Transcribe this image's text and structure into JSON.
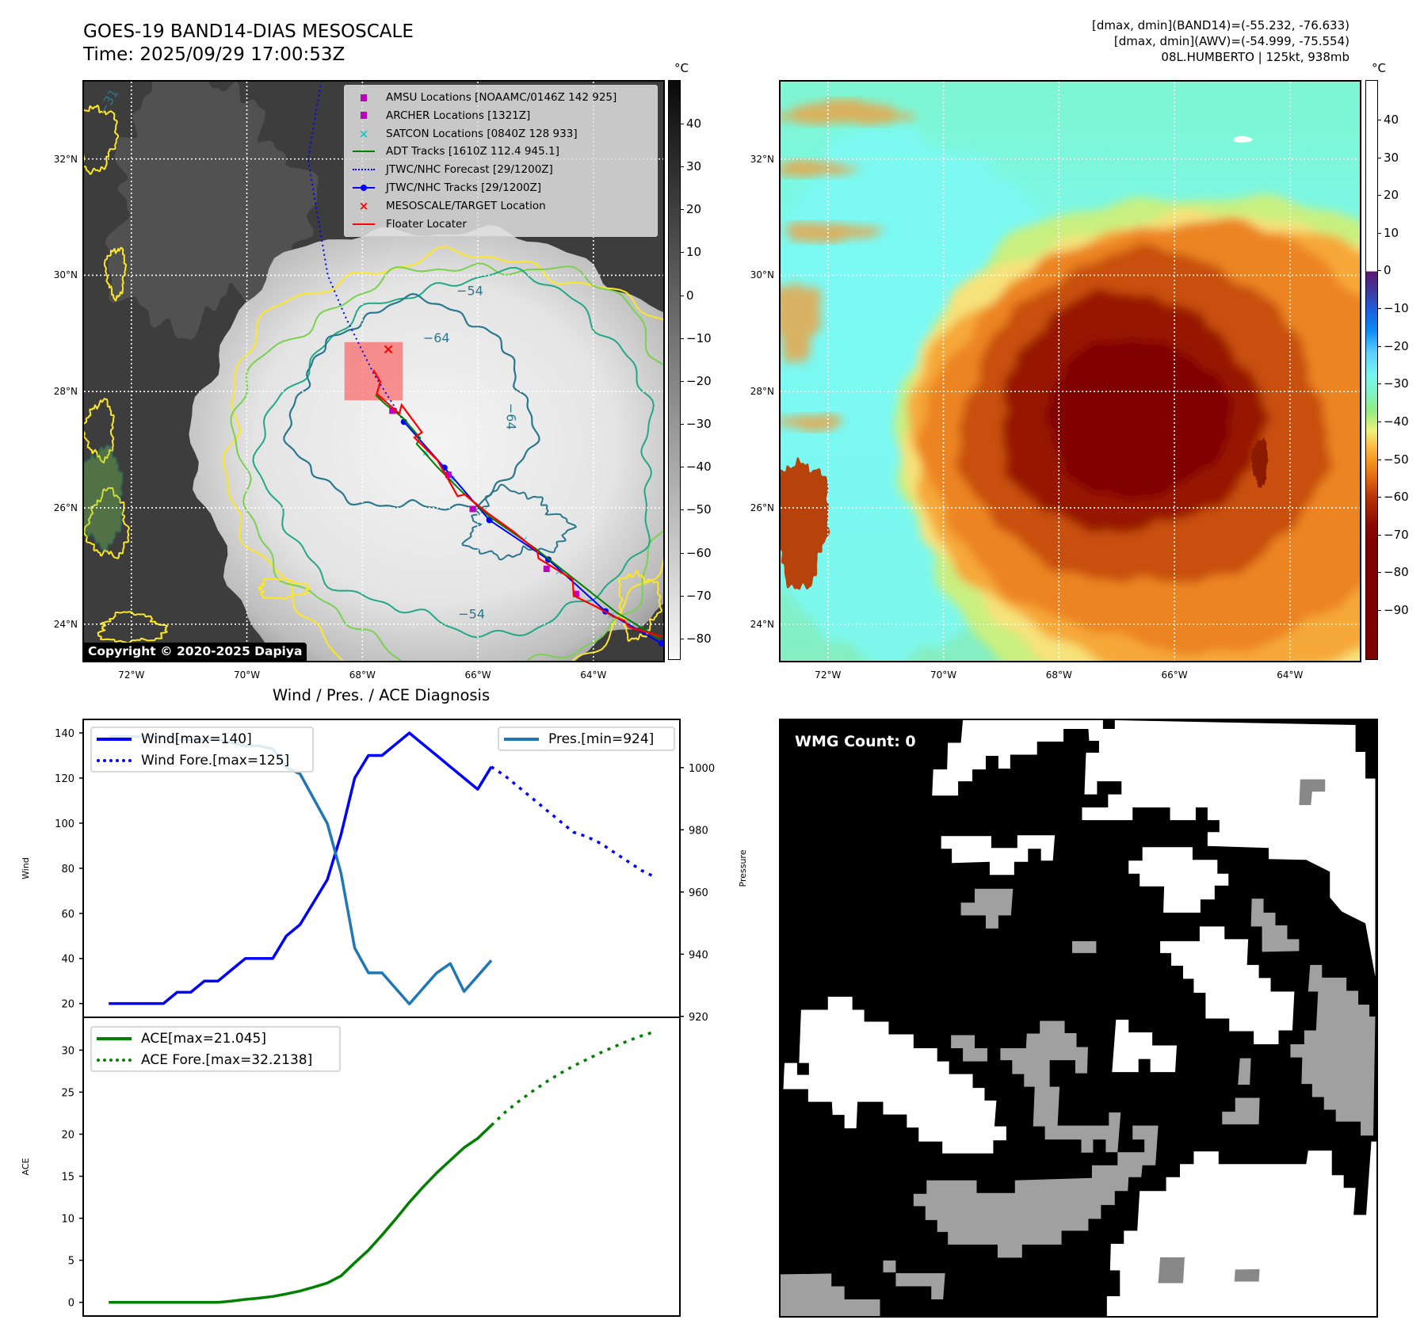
{
  "header": {
    "title": "GOES-19 BAND14-DIAS MESOSCALE",
    "time": "Time: 2025/09/29 17:00:53Z"
  },
  "info": {
    "band14": "[dmax, dmin](BAND14)=(-55.232, -76.633)",
    "awv": "[dmax, dmin](AWV)=(-54.999, -75.554)",
    "storm": "08L.HUMBERTO | 125kt, 938mb"
  },
  "map": {
    "lon_range": [
      -72.82,
      -62.79
    ],
    "lat_range": [
      23.37,
      33.33
    ],
    "lat_ticks": [
      {
        "value": 32,
        "label": "32°N"
      },
      {
        "value": 30,
        "label": "30°N"
      },
      {
        "value": 28,
        "label": "28°N"
      },
      {
        "value": 26,
        "label": "26°N"
      },
      {
        "value": 24,
        "label": "24°N"
      }
    ],
    "lon_ticks": [
      {
        "value": -72,
        "label": "72°W"
      },
      {
        "value": -70,
        "label": "70°W"
      },
      {
        "value": -68,
        "label": "68°W"
      },
      {
        "value": -66,
        "label": "66°W"
      },
      {
        "value": -64,
        "label": "64°W"
      }
    ],
    "copyright": "Copyright © 2020-2025 Dapiya",
    "contour_labels": [
      {
        "text": "−64",
        "lon": -66.95,
        "lat": 28.85,
        "rotate": 0
      },
      {
        "text": "−64",
        "lon": -65.5,
        "lat": 27.8,
        "rotate": 90
      },
      {
        "text": "−54",
        "lon": -66.37,
        "lat": 29.66,
        "rotate": 0
      },
      {
        "text": "−54",
        "lon": -66.34,
        "lat": 24.1,
        "rotate": 0
      },
      {
        "text": "−31",
        "lon": -72.45,
        "lat": 32.75,
        "rotate": -60
      }
    ],
    "legend": [
      {
        "label": "AMSU Locations [NOAAMC/0146Z 142 925]",
        "symbol": "square",
        "color": "#c000c0"
      },
      {
        "label": "ARCHER Locations [1321Z]",
        "symbol": "square",
        "color": "#c000c0"
      },
      {
        "label": "SATCON Locations [0840Z 128 933]",
        "symbol": "x",
        "color": "#20c0c0"
      },
      {
        "label": "ADT Tracks [1610Z 112.4 945.1]",
        "symbol": "line",
        "color": "#008000"
      },
      {
        "label": "JTWC/NHC Forecast [29/1200Z]",
        "symbol": "dotted",
        "color": "#0000ff"
      },
      {
        "label": "JTWC/NHC Tracks [29/1200Z]",
        "symbol": "line-dot",
        "color": "#0000ff"
      },
      {
        "label": "MESOSCALE/TARGET Location",
        "symbol": "x",
        "color": "#ff0000"
      },
      {
        "label": "Floater Locater",
        "symbol": "line",
        "color": "#ff0000"
      }
    ],
    "tracks": {
      "jtwc": [
        [
          -67.28,
          27.48
        ],
        [
          -66.58,
          26.69
        ],
        [
          -65.8,
          25.79
        ],
        [
          -64.78,
          25.11
        ],
        [
          -63.79,
          24.22
        ],
        [
          -62.82,
          23.67
        ]
      ],
      "forecast": [
        [
          -67.28,
          27.48
        ],
        [
          -67.8,
          28.3
        ],
        [
          -68.3,
          29.3
        ],
        [
          -68.6,
          30.0
        ],
        [
          -68.94,
          32.0
        ],
        [
          -68.7,
          33.4
        ]
      ],
      "adt": [
        [
          -67.77,
          27.94
        ],
        [
          -67.6,
          27.78
        ],
        [
          -67.3,
          27.55
        ],
        [
          -67.0,
          27.2
        ],
        [
          -67.06,
          27.1
        ],
        [
          -66.7,
          26.7
        ],
        [
          -66.3,
          26.3
        ],
        [
          -65.8,
          25.85
        ],
        [
          -65.0,
          25.3
        ],
        [
          -64.3,
          24.75
        ],
        [
          -63.6,
          24.2
        ],
        [
          -62.85,
          23.75
        ]
      ],
      "floater": [
        [
          -67.81,
          28.37
        ],
        [
          -67.69,
          28.17
        ],
        [
          -67.75,
          27.96
        ],
        [
          -67.36,
          27.62
        ],
        [
          -67.32,
          27.77
        ],
        [
          -66.97,
          27.3
        ],
        [
          -67.1,
          27.21
        ],
        [
          -66.7,
          26.82
        ],
        [
          -66.35,
          26.2
        ],
        [
          -66.23,
          26.23
        ],
        [
          -65.83,
          25.91
        ],
        [
          -65.38,
          25.59
        ],
        [
          -64.97,
          25.25
        ],
        [
          -64.95,
          25.13
        ],
        [
          -64.36,
          24.77
        ],
        [
          -64.34,
          24.49
        ],
        [
          -63.93,
          24.29
        ],
        [
          -63.65,
          24.13
        ],
        [
          -63.46,
          24.06
        ],
        [
          -63.39,
          23.95
        ],
        [
          -62.82,
          23.79
        ]
      ],
      "amsu_archer": [
        [
          -67.48,
          27.67
        ],
        [
          -66.51,
          26.57
        ],
        [
          -66.09,
          25.98
        ],
        [
          -64.81,
          24.95
        ],
        [
          -64.3,
          24.52
        ]
      ],
      "satcon": [
        [
          -66.9,
          26.95
        ],
        [
          -66.45,
          26.5
        ],
        [
          -65.9,
          25.95
        ],
        [
          -65.2,
          25.45
        ],
        [
          -64.6,
          24.9
        ],
        [
          -63.7,
          24.15
        ]
      ],
      "target": [
        -67.55,
        28.73
      ],
      "mesoscale_box": {
        "lon": [
          -68.31,
          -67.3
        ],
        "lat": [
          27.85,
          28.85
        ]
      }
    }
  },
  "colorbar_left": {
    "unit": "°C",
    "range": [
      -84.6,
      50.1
    ],
    "ticks": [
      40,
      30,
      20,
      10,
      0,
      -10,
      -20,
      -30,
      -40,
      -50,
      -60,
      -70,
      -80
    ]
  },
  "colorbar_right": {
    "unit": "°C",
    "range": [
      -102.8,
      50.5
    ],
    "ticks": [
      40,
      30,
      20,
      10,
      0,
      -10,
      -20,
      -30,
      -40,
      -50,
      -60,
      -70,
      -80,
      -90
    ]
  },
  "chart_title": "Wind / Pres. / ACE Diagnosis",
  "chart_data": [
    {
      "type": "line",
      "title": "Wind / Pres. / ACE Diagnosis",
      "ylabel": "Wind",
      "y2label": "Pressure",
      "xlim": [
        -1.87,
        41.8
      ],
      "ylim": [
        13.9,
        146
      ],
      "y2lim": [
        919.7,
        1015.5
      ],
      "yticks": [
        20,
        40,
        60,
        80,
        100,
        120,
        140
      ],
      "y2ticks": [
        920,
        940,
        960,
        980,
        1000
      ],
      "series": [
        {
          "name": "Wind[max=140]",
          "axis": "left",
          "style": "solid",
          "color": "#0000ff",
          "x": [
            0,
            1,
            2,
            3,
            4,
            5,
            6,
            7,
            8,
            9,
            10,
            11,
            12,
            13,
            14,
            15,
            16,
            17,
            18,
            19,
            20,
            21,
            22,
            23,
            24,
            25,
            26,
            27,
            28
          ],
          "values": [
            20,
            20,
            20,
            20,
            20,
            25,
            25,
            30,
            30,
            35,
            40,
            40,
            40,
            50,
            55,
            65,
            75,
            95,
            120,
            130,
            130,
            135,
            140,
            135,
            130,
            125,
            120,
            115,
            125
          ]
        },
        {
          "name": "Wind Fore.[max=125]",
          "axis": "left",
          "style": "dotted",
          "color": "#0000ff",
          "x": [
            28,
            29,
            30,
            31,
            32,
            33,
            34,
            35,
            36,
            37,
            38,
            39,
            40
          ],
          "values": [
            125,
            121,
            116,
            111,
            106,
            101,
            96,
            94,
            91,
            87,
            83,
            79,
            76
          ]
        },
        {
          "name": "Pres.[min=924]",
          "axis": "right",
          "style": "solid",
          "color": "#1f77b4",
          "x": [
            0,
            1,
            2,
            3,
            4,
            5,
            6,
            7,
            8,
            9,
            10,
            11,
            12,
            13,
            14,
            15,
            16,
            17,
            18,
            19,
            20,
            21,
            22,
            23,
            24,
            25,
            26,
            27,
            28
          ],
          "values": [
            1010,
            1010,
            1010,
            1010,
            1010,
            1009,
            1009,
            1009,
            1009,
            1008,
            1007,
            1007,
            1006,
            1000,
            998,
            990,
            982,
            966,
            942,
            934,
            934,
            929,
            924,
            929,
            934,
            937,
            928,
            933,
            938
          ]
        }
      ]
    },
    {
      "type": "line",
      "ylabel": "ACE",
      "xlim": [
        -1.87,
        41.8
      ],
      "ylim": [
        -1.63,
        33.9
      ],
      "yticks": [
        0,
        5,
        10,
        15,
        20,
        25,
        30
      ],
      "series": [
        {
          "name": "ACE[max=21.045]",
          "style": "solid",
          "color": "#008000",
          "x": [
            0,
            1,
            2,
            3,
            4,
            5,
            6,
            7,
            8,
            9,
            10,
            11,
            12,
            13,
            14,
            15,
            16,
            17,
            18,
            19,
            20,
            21,
            22,
            23,
            24,
            25,
            26,
            27,
            28
          ],
          "values": [
            0,
            0,
            0,
            0,
            0,
            0,
            0,
            0,
            0,
            0.15,
            0.35,
            0.5,
            0.7,
            1.0,
            1.35,
            1.8,
            2.3,
            3.15,
            4.7,
            6.2,
            8.0,
            9.9,
            11.9,
            13.7,
            15.4,
            16.9,
            18.4,
            19.5,
            21.045
          ]
        },
        {
          "name": "ACE Fore.[max=32.2138]",
          "style": "dotted",
          "color": "#008000",
          "x": [
            28,
            29,
            30,
            31,
            32,
            33,
            34,
            35,
            36,
            37,
            38,
            39,
            40
          ],
          "values": [
            21.045,
            22.6,
            23.9,
            25.1,
            26.2,
            27.2,
            28.1,
            28.9,
            29.7,
            30.4,
            31.1,
            31.7,
            32.2138
          ]
        }
      ]
    }
  ],
  "wmg": {
    "label": "WMG Count: 0"
  }
}
